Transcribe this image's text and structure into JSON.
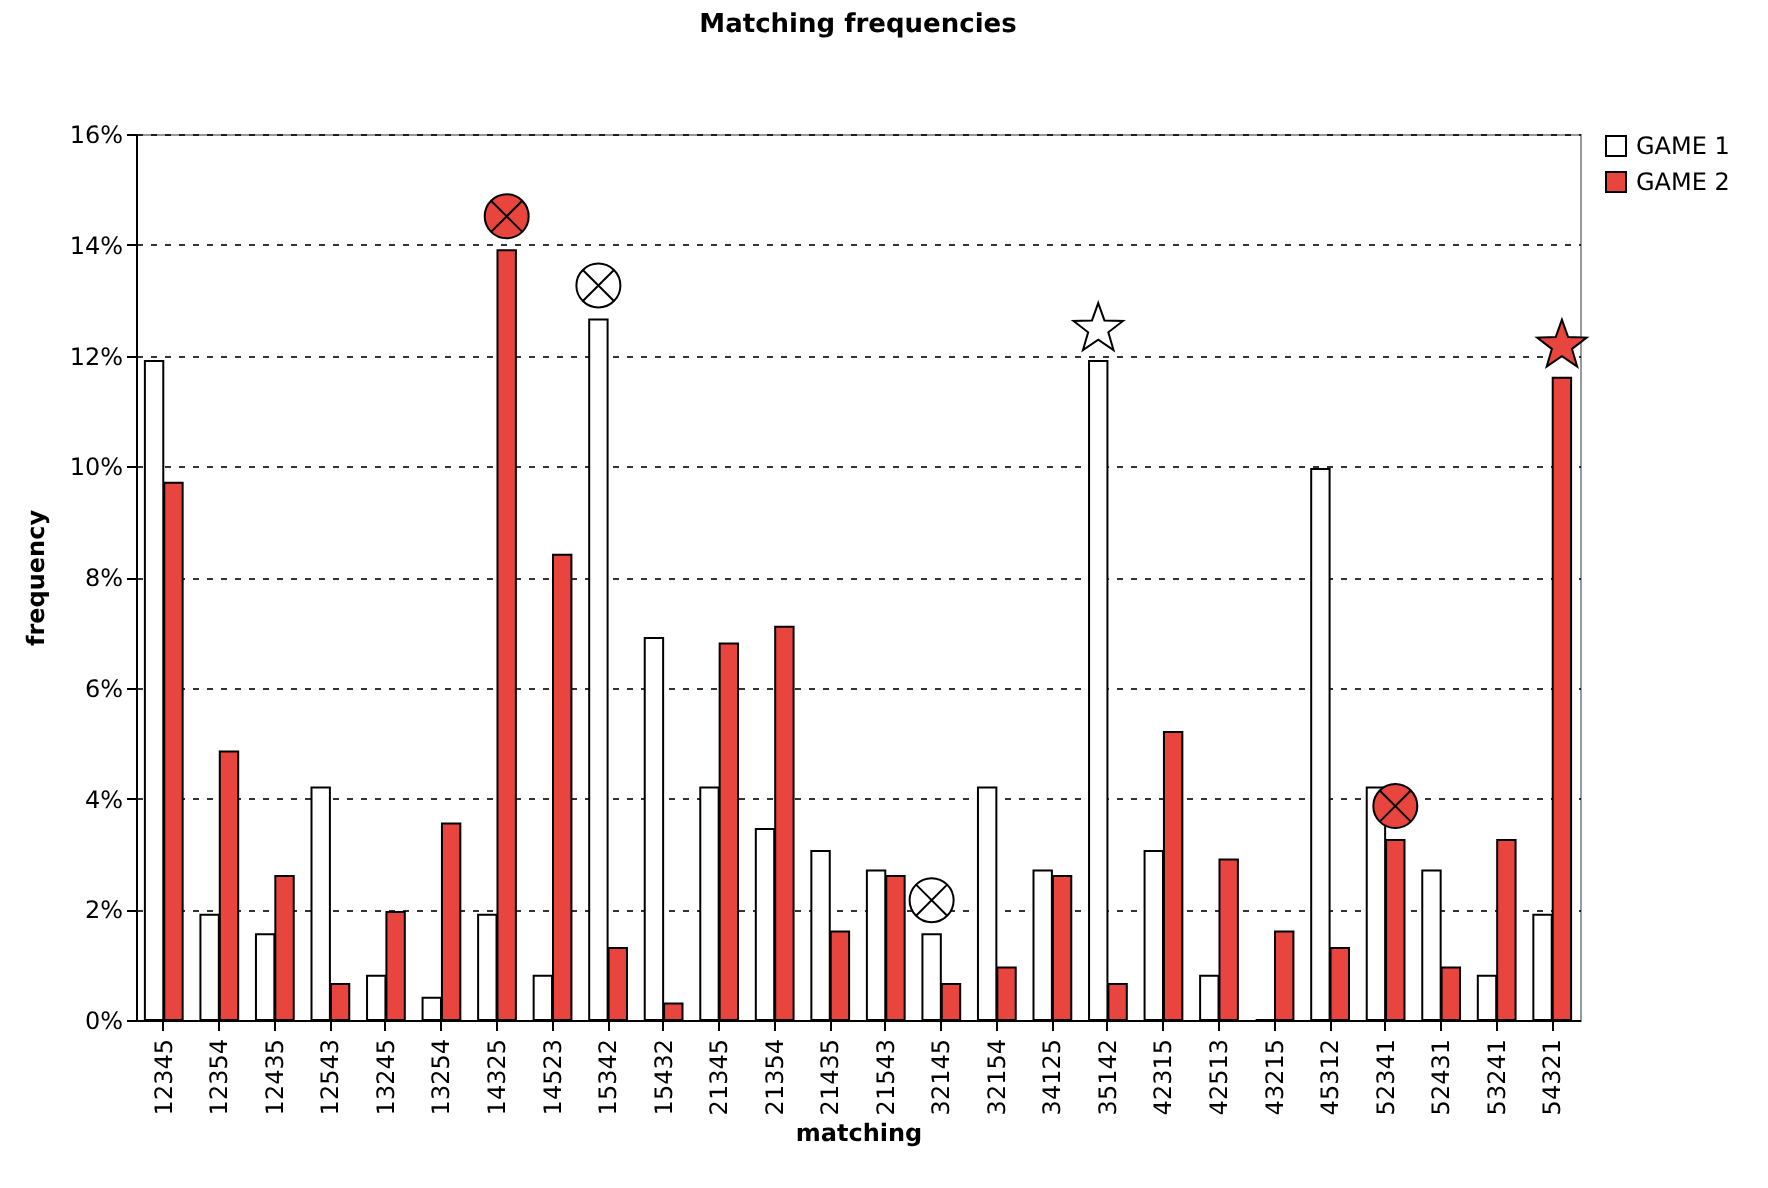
{
  "chart_data": {
    "type": "bar",
    "title": "Matching frequencies",
    "xlabel": "matching",
    "ylabel": "frequency",
    "categories": [
      "12345",
      "12354",
      "12435",
      "12543",
      "13245",
      "13254",
      "14325",
      "14523",
      "15342",
      "15432",
      "21345",
      "21354",
      "21435",
      "21543",
      "32145",
      "32154",
      "34125",
      "35142",
      "42315",
      "42513",
      "43215",
      "45312",
      "52341",
      "52431",
      "53241",
      "54321"
    ],
    "series": [
      {
        "name": "GAME 1",
        "color": "#ffffff",
        "values": [
          11.9,
          1.9,
          1.55,
          4.2,
          0.8,
          0.4,
          1.9,
          0.8,
          12.65,
          6.9,
          4.2,
          3.45,
          3.05,
          2.7,
          1.55,
          4.2,
          2.7,
          11.9,
          3.05,
          0.8,
          0,
          9.95,
          4.2,
          2.7,
          0.8,
          1.9
        ]
      },
      {
        "name": "GAME 2",
        "color": "#e8453e",
        "values": [
          9.7,
          4.85,
          2.6,
          0.65,
          1.95,
          3.55,
          13.9,
          8.4,
          1.3,
          0.3,
          6.8,
          7.1,
          1.6,
          2.6,
          0.65,
          0.95,
          2.6,
          0.65,
          5.2,
          2.9,
          1.6,
          1.3,
          3.25,
          0.95,
          3.25,
          11.6
        ]
      }
    ],
    "ylim": [
      0,
      16
    ],
    "yticks": [
      {
        "value": 0,
        "label": "0%"
      },
      {
        "value": 2,
        "label": "2%"
      },
      {
        "value": 4,
        "label": "4%"
      },
      {
        "value": 6,
        "label": "6%"
      },
      {
        "value": 8,
        "label": "8%"
      },
      {
        "value": 10,
        "label": "10%"
      },
      {
        "value": 12,
        "label": "12%"
      },
      {
        "value": 14,
        "label": "14%"
      },
      {
        "value": 16,
        "label": "16%"
      }
    ],
    "grid": "y",
    "legend": "right"
  }
}
